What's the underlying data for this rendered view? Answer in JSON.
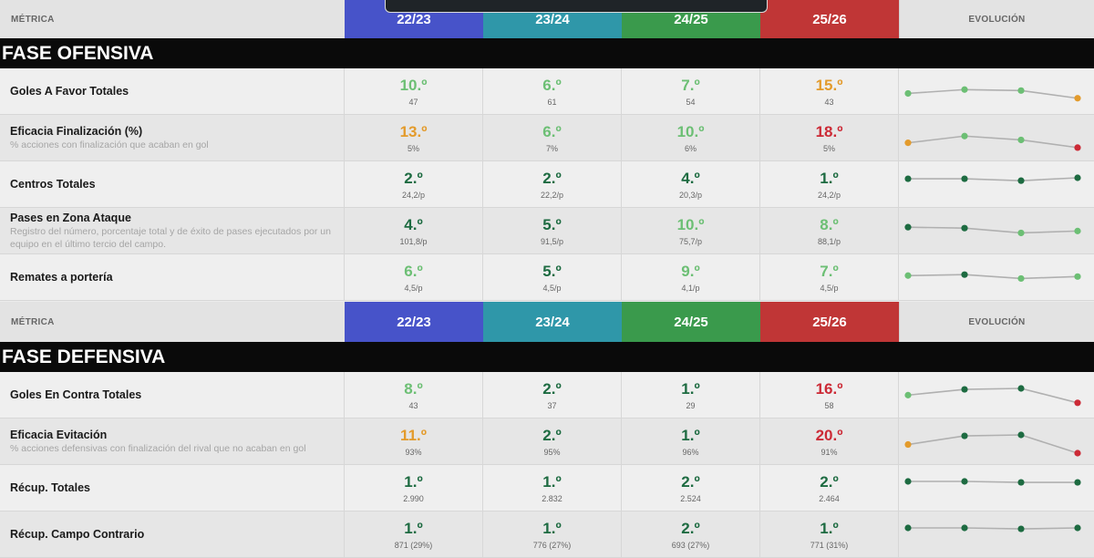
{
  "colors": {
    "season_colors": [
      "#4753c9",
      "#2f97a9",
      "#3a9a4c",
      "#c03636"
    ],
    "rank_colors": {
      "dark": "#1d6b41",
      "light": "#6cbf74",
      "orange": "#e39b2c",
      "red": "#cc2a36"
    },
    "line": "#b0b0b0"
  },
  "headers": [
    {
      "metric_label": "MÉTRICA",
      "seasons": [
        "22/23",
        "23/24",
        "24/25",
        "25/26"
      ],
      "evolution_label": "EVOLUCIÓN"
    },
    {
      "metric_label": "MÉTRICA",
      "seasons": [
        "22/23",
        "23/24",
        "24/25",
        "25/26"
      ],
      "evolution_label": "EVOLUCIÓN"
    }
  ],
  "sections": [
    {
      "title": "FASE OFENSIVA",
      "metrics": [
        {
          "name": "Goles A Favor Totales",
          "desc": "",
          "cells": [
            {
              "rank": "10.º",
              "sub": "47",
              "tone": "light"
            },
            {
              "rank": "6.º",
              "sub": "61",
              "tone": "light"
            },
            {
              "rank": "7.º",
              "sub": "54",
              "tone": "light"
            },
            {
              "rank": "15.º",
              "sub": "43",
              "tone": "orange"
            }
          ]
        },
        {
          "name": "Eficacia Finalización (%)",
          "desc": "% acciones con finalización que acaban en gol",
          "cells": [
            {
              "rank": "13.º",
              "sub": "5%",
              "tone": "orange"
            },
            {
              "rank": "6.º",
              "sub": "7%",
              "tone": "light"
            },
            {
              "rank": "10.º",
              "sub": "6%",
              "tone": "light"
            },
            {
              "rank": "18.º",
              "sub": "5%",
              "tone": "red"
            }
          ]
        },
        {
          "name": "Centros Totales",
          "desc": "",
          "cells": [
            {
              "rank": "2.º",
              "sub": "24,2/p",
              "tone": "dark"
            },
            {
              "rank": "2.º",
              "sub": "22,2/p",
              "tone": "dark"
            },
            {
              "rank": "4.º",
              "sub": "20,3/p",
              "tone": "dark"
            },
            {
              "rank": "1.º",
              "sub": "24,2/p",
              "tone": "dark"
            }
          ]
        },
        {
          "name": "Pases en Zona Ataque",
          "desc": "Registro del número, porcentaje total y de éxito de pases ejecutados por un equipo en el último tercio del campo.",
          "cells": [
            {
              "rank": "4.º",
              "sub": "101,8/p",
              "tone": "dark"
            },
            {
              "rank": "5.º",
              "sub": "91,5/p",
              "tone": "dark"
            },
            {
              "rank": "10.º",
              "sub": "75,7/p",
              "tone": "light"
            },
            {
              "rank": "8.º",
              "sub": "88,1/p",
              "tone": "light"
            }
          ]
        },
        {
          "name": "Remates a portería",
          "desc": "",
          "cells": [
            {
              "rank": "6.º",
              "sub": "4,5/p",
              "tone": "light"
            },
            {
              "rank": "5.º",
              "sub": "4,5/p",
              "tone": "dark"
            },
            {
              "rank": "9.º",
              "sub": "4,1/p",
              "tone": "light"
            },
            {
              "rank": "7.º",
              "sub": "4,5/p",
              "tone": "light"
            }
          ]
        }
      ]
    },
    {
      "title": "FASE DEFENSIVA",
      "metrics": [
        {
          "name": "Goles En Contra Totales",
          "desc": "",
          "cells": [
            {
              "rank": "8.º",
              "sub": "43",
              "tone": "light"
            },
            {
              "rank": "2.º",
              "sub": "37",
              "tone": "dark"
            },
            {
              "rank": "1.º",
              "sub": "29",
              "tone": "dark"
            },
            {
              "rank": "16.º",
              "sub": "58",
              "tone": "red"
            }
          ]
        },
        {
          "name": "Eficacia Evitación",
          "desc": "% acciones defensivas con finalización del rival que no acaban en gol",
          "cells": [
            {
              "rank": "11.º",
              "sub": "93%",
              "tone": "orange"
            },
            {
              "rank": "2.º",
              "sub": "95%",
              "tone": "dark"
            },
            {
              "rank": "1.º",
              "sub": "96%",
              "tone": "dark"
            },
            {
              "rank": "20.º",
              "sub": "91%",
              "tone": "red"
            }
          ]
        },
        {
          "name": "Récup. Totales",
          "desc": "",
          "cells": [
            {
              "rank": "1.º",
              "sub": "2.990",
              "tone": "dark"
            },
            {
              "rank": "1.º",
              "sub": "2.832",
              "tone": "dark"
            },
            {
              "rank": "2.º",
              "sub": "2.524",
              "tone": "dark"
            },
            {
              "rank": "2.º",
              "sub": "2.464",
              "tone": "dark"
            }
          ]
        },
        {
          "name": "Récup. Campo Contrario",
          "desc": "",
          "cells": [
            {
              "rank": "1.º",
              "sub": "871 (29%)",
              "tone": "dark"
            },
            {
              "rank": "1.º",
              "sub": "776 (27%)",
              "tone": "dark"
            },
            {
              "rank": "2.º",
              "sub": "693 (27%)",
              "tone": "dark"
            },
            {
              "rank": "1.º",
              "sub": "771 (31%)",
              "tone": "dark"
            }
          ]
        }
      ]
    }
  ],
  "chart_data": {
    "type": "table",
    "categories": [
      "22/23",
      "23/24",
      "24/25",
      "25/26"
    ],
    "rank_scale": [
      1,
      20
    ],
    "series": [
      {
        "name": "Goles A Favor Totales",
        "values": [
          10,
          6,
          7,
          15
        ]
      },
      {
        "name": "Eficacia Finalización (%)",
        "values": [
          13,
          6,
          10,
          18
        ]
      },
      {
        "name": "Centros Totales",
        "values": [
          2,
          2,
          4,
          1
        ]
      },
      {
        "name": "Pases en Zona Ataque",
        "values": [
          4,
          5,
          10,
          8
        ]
      },
      {
        "name": "Remates a portería",
        "values": [
          6,
          5,
          9,
          7
        ]
      },
      {
        "name": "Goles En Contra Totales",
        "values": [
          8,
          2,
          1,
          16
        ]
      },
      {
        "name": "Eficacia Evitación",
        "values": [
          11,
          2,
          1,
          20
        ]
      },
      {
        "name": "Récup. Totales",
        "values": [
          1,
          1,
          2,
          2
        ]
      },
      {
        "name": "Récup. Campo Contrario",
        "values": [
          1,
          1,
          2,
          1
        ]
      }
    ]
  }
}
